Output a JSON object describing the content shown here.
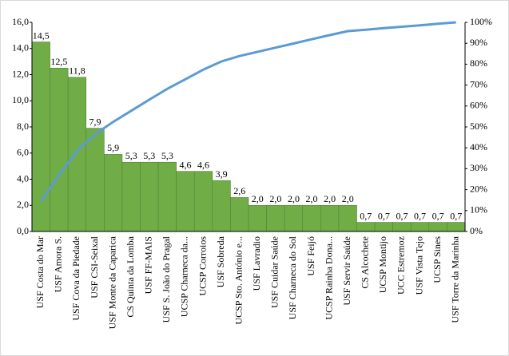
{
  "chart_data": {
    "type": "pareto",
    "categories": [
      "USF Costa do Mar",
      "USF Amora S.",
      "USF Cova da Piedade",
      "USF CSI-Seixal",
      "USF Monte da Caparica",
      "CS Quinta da Lomba",
      "USF FF-MAIS",
      "USF S. João do Pragal",
      "UCSP Charneca da...",
      "UCSP Corroios",
      "USF Sobreda",
      "UCSP Sto. António e...",
      "USF Lavradio",
      "USF Cuidar Saúde",
      "USF Charneca do Sol",
      "USF Feijó",
      "UCSP Rainha Dona...",
      "USF Servir Saúde",
      "CS Alcochete",
      "UCSP Montijo",
      "UCC Estremoz",
      "USF Vista Tejo",
      "UCSP Sines",
      "USF Torre da Marinha"
    ],
    "series": [
      {
        "color": "#70ad47",
        "values": [
          14.5,
          12.5,
          11.8,
          7.9,
          5.9,
          5.3,
          5.3,
          5.3,
          4.6,
          4.6,
          3.9,
          2.6,
          2.0,
          2.0,
          2.0,
          2.0,
          2.0,
          2.0,
          0.7,
          0.7,
          0.7,
          0.7,
          0.7,
          0.7
        ],
        "value_labels": [
          "14,5",
          "12,5",
          "11,8",
          "7,9",
          "5,9",
          "5,3",
          "5,3",
          "5,3",
          "4,6",
          "4,6",
          "3,9",
          "2,6",
          "2,0",
          "2,0",
          "2,0",
          "2,0",
          "2,0",
          "2,0",
          "0,7",
          "0,7",
          "0,7",
          "0,7",
          "0,7",
          "0,7"
        ]
      },
      {
        "color": "#5b9bd5",
        "axis": "y2",
        "values": [
          14.4,
          26.9,
          38.6,
          46.5,
          52.4,
          57.7,
          63.0,
          68.2,
          72.8,
          77.4,
          81.3,
          83.9,
          85.9,
          87.9,
          89.9,
          91.9,
          93.9,
          95.8,
          96.5,
          97.2,
          97.9,
          98.6,
          99.3,
          100
        ]
      }
    ],
    "ylim": [
      0,
      16
    ],
    "yticks": [
      {
        "value": 0,
        "label": "0,0"
      },
      {
        "value": 2,
        "label": "2,0"
      },
      {
        "value": 4,
        "label": "4,0"
      },
      {
        "value": 6,
        "label": "6,0"
      },
      {
        "value": 8,
        "label": "8,0"
      },
      {
        "value": 10,
        "label": "10,0"
      },
      {
        "value": 12,
        "label": "12,0"
      },
      {
        "value": 14,
        "label": "14,0"
      },
      {
        "value": 16,
        "label": "16,0"
      }
    ],
    "y2lim": [
      0,
      100
    ],
    "y2ticks": [
      {
        "value": 0,
        "label": "0%"
      },
      {
        "value": 10,
        "label": "10%"
      },
      {
        "value": 20,
        "label": "20%"
      },
      {
        "value": 30,
        "label": "30%"
      },
      {
        "value": 40,
        "label": "40%"
      },
      {
        "value": 50,
        "label": "50%"
      },
      {
        "value": 60,
        "label": "60%"
      },
      {
        "value": 70,
        "label": "70%"
      },
      {
        "value": 80,
        "label": "80%"
      },
      {
        "value": 90,
        "label": "90%"
      },
      {
        "value": 100,
        "label": "100%"
      }
    ]
  }
}
